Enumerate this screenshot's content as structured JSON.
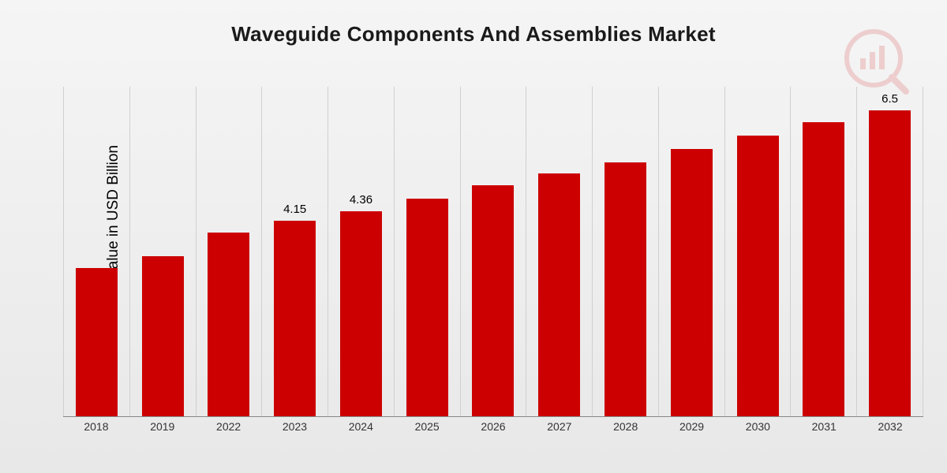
{
  "chart": {
    "type": "bar",
    "title": "Waveguide Components And Assemblies Market",
    "title_fontsize": 26,
    "ylabel": "Market Value in USD Billion",
    "ylabel_fontsize": 19,
    "background_gradient_top": "#f5f5f5",
    "background_gradient_bottom": "#e8e8e8",
    "grid_color": "#d0d0d0",
    "axis_color": "#888888",
    "bar_color": "#cc0000",
    "bar_width_ratio": 0.64,
    "label_fontsize": 15,
    "xlabel_fontsize": 14,
    "watermark_opacity": 0.15,
    "watermark_fill": "#cc0000",
    "ymin": 0,
    "ymax": 7.0,
    "categories": [
      "2018",
      "2019",
      "2022",
      "2023",
      "2024",
      "2025",
      "2026",
      "2027",
      "2028",
      "2029",
      "2030",
      "2031",
      "2032"
    ],
    "values": [
      3.15,
      3.4,
      3.9,
      4.15,
      4.36,
      4.62,
      4.9,
      5.15,
      5.4,
      5.68,
      5.96,
      6.25,
      6.5
    ],
    "value_labels": [
      "",
      "",
      "",
      "4.15",
      "4.36",
      "",
      "",
      "",
      "",
      "",
      "",
      "",
      "6.5"
    ]
  }
}
